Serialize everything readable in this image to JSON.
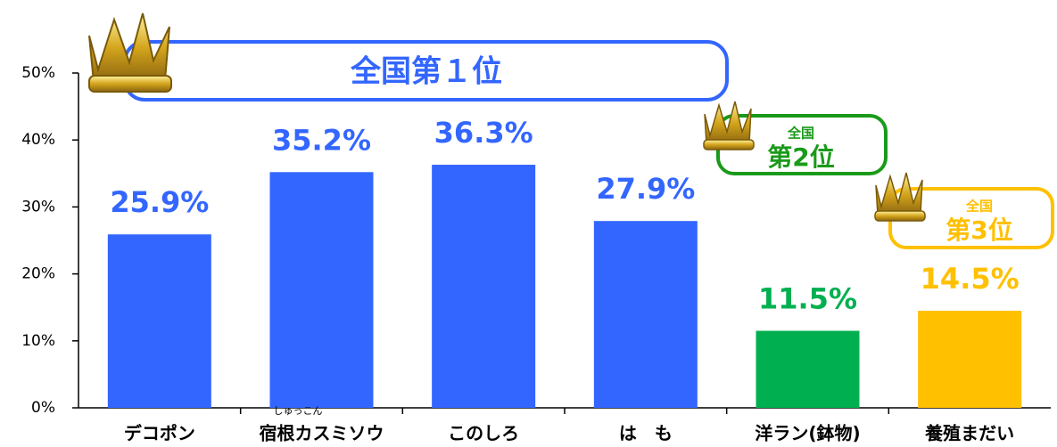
{
  "chart_data": {
    "type": "bar",
    "categories": [
      "デコポン",
      "宿根カスミソウ",
      "このしろ",
      "は　も",
      "洋ラン(鉢物)",
      "養殖まだい"
    ],
    "values": [
      25.9,
      35.2,
      36.3,
      27.9,
      11.5,
      14.5
    ],
    "value_labels": [
      "25.9%",
      "35.2%",
      "36.3%",
      "27.9%",
      "11.5%",
      "14.5%"
    ],
    "colors": [
      "#3366ff",
      "#3366ff",
      "#3366ff",
      "#3366ff",
      "#00b050",
      "#ffc000"
    ],
    "ylim": [
      0,
      50
    ],
    "yticks": [
      {
        "value": 0,
        "label": "0%"
      },
      {
        "value": 10,
        "label": "10%"
      },
      {
        "value": 20,
        "label": "20%"
      },
      {
        "value": 30,
        "label": "30%"
      },
      {
        "value": 40,
        "label": "40%"
      },
      {
        "value": 50,
        "label": "50%"
      }
    ],
    "annotations": [
      "全国第１位",
      "全国",
      "第2位",
      "全国",
      "第3位"
    ],
    "ruby": "しゅっこん"
  }
}
